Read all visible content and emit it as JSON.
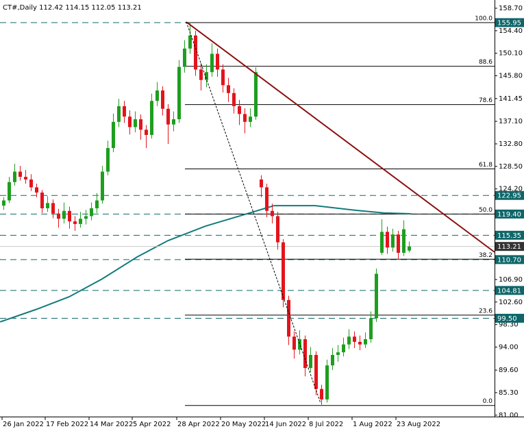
{
  "chart_data": {
    "type": "candlestick",
    "symbol": "CT#,Daily",
    "up_color": "#1e9e1e",
    "down_color": "#e3141c",
    "candles": [
      [
        121.0,
        122.6,
        120.2,
        122.0
      ],
      [
        122.0,
        126.5,
        121.5,
        125.5
      ],
      [
        125.5,
        129.0,
        124.8,
        127.5
      ],
      [
        127.5,
        128.6,
        125.8,
        126.5
      ],
      [
        126.5,
        127.8,
        125.2,
        126.0
      ],
      [
        126.0,
        127.0,
        123.8,
        124.5
      ],
      [
        124.5,
        125.2,
        122.6,
        123.5
      ],
      [
        123.5,
        124.0,
        119.6,
        120.5
      ],
      [
        120.5,
        122.8,
        119.8,
        121.5
      ],
      [
        121.5,
        122.2,
        118.6,
        119.5
      ],
      [
        119.5,
        120.4,
        116.8,
        118.5
      ],
      [
        118.5,
        121.6,
        117.6,
        120.0
      ],
      [
        120.0,
        120.8,
        116.6,
        118.0
      ],
      [
        118.0,
        119.0,
        116.2,
        117.5
      ],
      [
        117.5,
        119.8,
        116.8,
        118.5
      ],
      [
        118.5,
        120.2,
        117.4,
        119.0
      ],
      [
        119.0,
        121.6,
        118.2,
        120.5
      ],
      [
        120.5,
        123.4,
        119.6,
        122.0
      ],
      [
        122.0,
        128.6,
        121.4,
        127.5
      ],
      [
        127.5,
        133.4,
        126.8,
        132.0
      ],
      [
        132.0,
        138.6,
        131.2,
        137.0
      ],
      [
        137.0,
        141.4,
        136.0,
        140.0
      ],
      [
        140.0,
        141.0,
        136.8,
        138.0
      ],
      [
        138.0,
        139.2,
        134.6,
        136.0
      ],
      [
        136.0,
        139.0,
        135.0,
        137.5
      ],
      [
        137.5,
        138.4,
        133.6,
        135.5
      ],
      [
        135.5,
        136.4,
        132.0,
        134.5
      ],
      [
        134.5,
        142.4,
        133.8,
        141.0
      ],
      [
        141.0,
        144.6,
        140.0,
        143.0
      ],
      [
        143.0,
        143.8,
        138.2,
        139.5
      ],
      [
        139.5,
        140.4,
        132.8,
        136.5
      ],
      [
        136.5,
        139.0,
        135.2,
        137.5
      ],
      [
        137.5,
        148.8,
        136.8,
        147.5
      ],
      [
        147.5,
        152.6,
        146.4,
        151.0
      ],
      [
        151.0,
        156.0,
        150.0,
        153.5
      ],
      [
        153.5,
        154.4,
        145.8,
        147.0
      ],
      [
        147.0,
        148.2,
        143.0,
        145.0
      ],
      [
        145.0,
        148.0,
        143.6,
        146.5
      ],
      [
        146.5,
        152.0,
        145.6,
        150.0
      ],
      [
        150.0,
        151.0,
        145.6,
        147.0
      ],
      [
        147.0,
        148.0,
        142.6,
        144.0
      ],
      [
        144.0,
        145.4,
        140.8,
        142.5
      ],
      [
        142.5,
        143.4,
        138.6,
        140.0
      ],
      [
        140.0,
        141.2,
        136.4,
        138.5
      ],
      [
        138.5,
        139.6,
        134.8,
        137.0
      ],
      [
        137.0,
        139.6,
        136.0,
        138.0
      ],
      [
        138.0,
        147.4,
        137.4,
        146.5
      ],
      [
        126.0,
        126.8,
        122.6,
        124.5
      ],
      [
        124.5,
        125.2,
        118.8,
        120.0
      ],
      [
        120.0,
        121.4,
        117.6,
        119.0
      ],
      [
        119.0,
        119.8,
        112.6,
        114.0
      ],
      [
        114.0,
        114.6,
        101.6,
        103.0
      ],
      [
        103.0,
        103.8,
        94.4,
        96.0
      ],
      [
        96.0,
        97.0,
        91.8,
        93.5
      ],
      [
        93.5,
        97.2,
        92.6,
        95.5
      ],
      [
        95.5,
        96.2,
        88.4,
        90.0
      ],
      [
        90.0,
        94.0,
        89.2,
        92.5
      ],
      [
        92.5,
        93.2,
        84.8,
        86.0
      ],
      [
        86.0,
        86.8,
        83.0,
        84.0
      ],
      [
        84.0,
        91.6,
        83.4,
        90.5
      ],
      [
        90.5,
        93.8,
        89.6,
        92.5
      ],
      [
        92.5,
        94.4,
        91.2,
        93.0
      ],
      [
        93.0,
        95.8,
        92.2,
        94.5
      ],
      [
        94.5,
        97.4,
        93.6,
        96.0
      ],
      [
        96.0,
        97.0,
        93.8,
        95.0
      ],
      [
        95.0,
        96.2,
        93.4,
        94.5
      ],
      [
        94.5,
        96.8,
        93.8,
        95.5
      ],
      [
        95.5,
        100.8,
        94.8,
        99.5
      ],
      [
        99.5,
        109.0,
        98.8,
        108.0
      ],
      [
        112.0,
        118.4,
        111.6,
        116.0
      ],
      [
        116.0,
        117.0,
        111.8,
        113.0
      ],
      [
        113.0,
        116.6,
        112.2,
        115.5
      ],
      [
        115.5,
        116.2,
        110.8,
        112.0
      ],
      [
        112.0,
        118.2,
        111.4,
        116.5
      ],
      [
        112.42,
        114.15,
        112.05,
        113.21
      ]
    ],
    "xlim": [
      -0.625,
      89.625
    ],
    "ylim": [
      80.72,
      160.27
    ],
    "yticks": [
      {
        "value": 158.7,
        "label": "158.70"
      },
      {
        "value": 154.4,
        "label": "154.40"
      },
      {
        "value": 150.1,
        "label": "150.10"
      },
      {
        "value": 145.8,
        "label": "145.80"
      },
      141.45,
      {
        "value": 137.1,
        "label": "137.10"
      },
      {
        "value": 132.8,
        "label": "132.80"
      },
      {
        "value": 128.5,
        "label": "128.50"
      },
      {
        "value": 124.2,
        "label": "124.20"
      },
      {
        "value": 106.9,
        "label": "106.90"
      },
      {
        "value": 102.6,
        "label": "102.60"
      },
      {
        "value": 98.3,
        "label": "98.30"
      },
      {
        "value": 94,
        "label": "94.00"
      },
      {
        "value": 89.6,
        "label": "89.60"
      },
      {
        "value": 85.3,
        "label": "85.30"
      },
      {
        "value": 81,
        "label": "81.00"
      }
    ],
    "xticks": [
      {
        "value": -0.25,
        "label": "26 Jan 2022"
      },
      {
        "value": 7.625,
        "label": "17 Feb 2022"
      },
      {
        "value": 15.625,
        "label": "14 Mar 2022"
      },
      {
        "value": 23.5,
        "label": "5 Apr 2022"
      },
      {
        "value": 31.625,
        "label": "28 Apr 2022"
      },
      {
        "value": 39.625,
        "label": "20 May 2022"
      },
      {
        "value": 47.625,
        "label": "14 Jun 2022"
      },
      {
        "value": 55.625,
        "label": "8 Jul 2022"
      },
      {
        "value": 63.625,
        "label": "1 Aug 2022"
      },
      {
        "value": 71.625,
        "label": "23 Aug 2022"
      }
    ],
    "levels": [
      155.95,
      122.95,
      {
        "value": 119.4,
        "label": "119.40"
      },
      115.35,
      {
        "value": 110.7,
        "label": "110.70"
      },
      104.81,
      {
        "value": 99.5,
        "label": "99.50"
      }
    ],
    "level_color": "#0f6669",
    "current_color": "#333333",
    "ma": {
      "color": "#127a7c",
      "x": [
        -0.6,
        6,
        12,
        18,
        24.4,
        30,
        36.9,
        43,
        49.4,
        56.9,
        64.4,
        69.4,
        74.4
      ],
      "values": [
        98.8,
        101.2,
        103.6,
        107.0,
        111.2,
        114.3,
        117.1,
        119.0,
        121.0,
        121.0,
        120.1,
        119.6,
        119.45
      ]
    },
    "trendline": {
      "color": "#8b1010",
      "x": [
        33.375,
        89.625
      ],
      "y": [
        156.08,
        112.12
      ]
    },
    "swing_line": {
      "color": "#000000",
      "x": [
        33.375,
        57.875
      ],
      "y": [
        156.08,
        83.34
      ]
    },
    "fib": {
      "x_start": 33.125,
      "high": 155.95,
      "low": 82.85,
      "levels": [
        {
          "value": 100,
          "label": "100.0"
        },
        88.6,
        78.6,
        61.8,
        {
          "value": 50,
          "label": "50.0"
        },
        38.2,
        23.6,
        {
          "value": 0,
          "label": "0.0"
        }
      ]
    }
  }
}
